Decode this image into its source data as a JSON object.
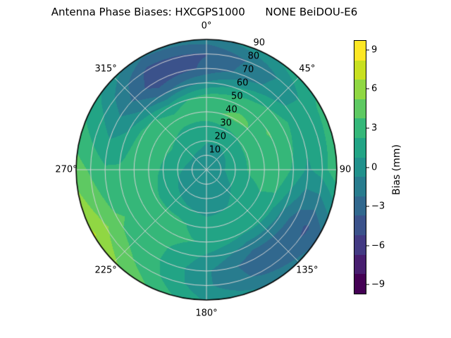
{
  "title": "Antenna Phase Biases: HXCGPS1000      NONE BeiDOU-E6",
  "colors": {
    "background": "#ffffff",
    "grid_line": "#d4d4d4",
    "outline": "#000000",
    "text": "#000000"
  },
  "chart_data": {
    "type": "heatmap",
    "projection": "polar",
    "title": "Antenna Phase Biases: HXCGPS1000      NONE BeiDOU-E6",
    "angular_axis": {
      "direction": "clockwise",
      "zero_location": "top",
      "tick_angles_deg": [
        0,
        45,
        90,
        135,
        180,
        225,
        270,
        315
      ],
      "tick_labels": [
        "0°",
        "45°",
        "90",
        "135°",
        "180°",
        "225°",
        "270°",
        "315°"
      ]
    },
    "radial_axis": {
      "max": 90,
      "ticks": [
        10,
        20,
        30,
        40,
        50,
        60,
        70,
        80,
        90
      ],
      "tick_labels": [
        "10",
        "20",
        "30",
        "40",
        "50",
        "60",
        "70",
        "80",
        "90"
      ],
      "label_angle_deg": 22.5
    },
    "grid": {
      "azimuth_deg": [
        0,
        30,
        60,
        90,
        120,
        150,
        180,
        210,
        240,
        270,
        300,
        330
      ],
      "zenith_deg": [
        0,
        10,
        20,
        30,
        40,
        50,
        60,
        70,
        80,
        90
      ],
      "bias_mm": [
        [
          0.5,
          0.5,
          0.5,
          0.5,
          0.5,
          0.5,
          0.5,
          0.5,
          0.5,
          0.5,
          0.5,
          0.5
        ],
        [
          0.5,
          0.5,
          0.5,
          0.6,
          0.5,
          0.2,
          -0.2,
          -0.3,
          0.0,
          0.3,
          0.5,
          0.5
        ],
        [
          0.8,
          0.8,
          1.0,
          1.2,
          0.8,
          0.3,
          0.0,
          0.0,
          0.5,
          1.0,
          1.5,
          1.2
        ],
        [
          1.5,
          2.0,
          2.5,
          2.5,
          1.5,
          0.8,
          0.5,
          1.0,
          1.5,
          2.0,
          2.5,
          2.0
        ],
        [
          3.5,
          4.0,
          3.5,
          3.0,
          2.0,
          1.5,
          1.5,
          2.6,
          2.5,
          3.0,
          3.2,
          2.8
        ],
        [
          3.0,
          3.5,
          3.8,
          3.5,
          1.5,
          1.0,
          2.0,
          2.8,
          3.0,
          3.0,
          2.8,
          1.5
        ],
        [
          -0.5,
          1.5,
          3.0,
          2.0,
          -1.0,
          -1.5,
          0.5,
          2.5,
          3.5,
          2.5,
          0.5,
          -2.5
        ],
        [
          -3.5,
          -1.0,
          1.5,
          0.5,
          -3.0,
          -3.4,
          -0.5,
          2.5,
          4.0,
          2.5,
          -0.5,
          -4.8
        ],
        [
          -3.8,
          -1.5,
          1.5,
          1.5,
          -4.0,
          -2.8,
          -0.5,
          3.0,
          5.5,
          3.5,
          0.5,
          -4.2
        ],
        [
          -1.5,
          0.5,
          2.5,
          3.5,
          -2.6,
          -1.0,
          0.5,
          4.0,
          7.0,
          4.5,
          1.5,
          -2.0
        ]
      ]
    },
    "colorbar": {
      "label": "Bias (mm)",
      "cmap": "viridis",
      "ticks": [
        9,
        6,
        3,
        0,
        -3,
        -6,
        -9
      ],
      "tick_labels": [
        "9",
        "6",
        "3",
        "0",
        "−3",
        "−6",
        "−9"
      ],
      "levels": [
        -9.75,
        -8.25,
        -6.75,
        -5.25,
        -3.75,
        -2.25,
        -0.75,
        0.75,
        2.25,
        3.75,
        5.25,
        6.75,
        8.25,
        9.75
      ],
      "colors": [
        "#440154",
        "#471e6f",
        "#433a83",
        "#3b528b",
        "#31688e",
        "#287c8e",
        "#21918c",
        "#22a485",
        "#35b779",
        "#5ec962",
        "#90d743",
        "#c8e020",
        "#fde725"
      ]
    }
  }
}
